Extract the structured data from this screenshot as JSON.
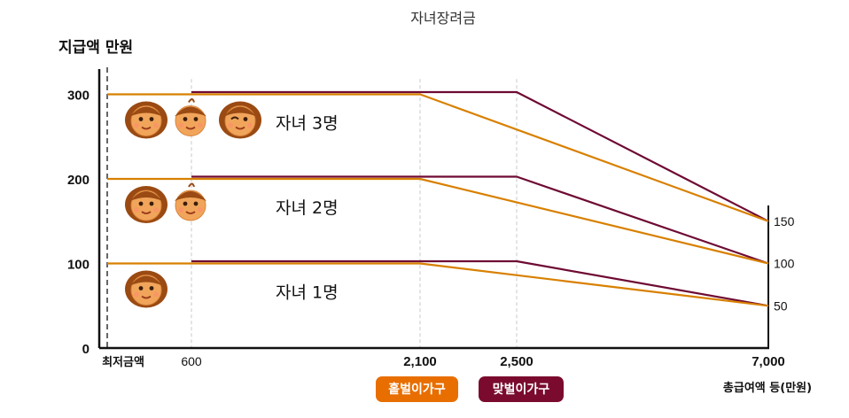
{
  "chart_data": {
    "type": "line",
    "title": "자녀장려금",
    "ylabel": "지급액 만원",
    "xlabel": "총급여액 등(만원)",
    "x_first_label": "최저금액",
    "x_ticks": [
      600,
      2100,
      2500,
      7000
    ],
    "x_tick_labels": [
      "600",
      "2,100",
      "2,500",
      "7,000"
    ],
    "y_ticks": [
      0,
      100,
      200,
      300
    ],
    "y_tick_labels": [
      "0",
      "100",
      "200",
      "300"
    ],
    "right_ticks": [
      50,
      100,
      150
    ],
    "right_tick_labels": [
      "50",
      "100",
      "150"
    ],
    "ylim": [
      0,
      320
    ],
    "colors": {
      "single": "#d88000",
      "dual": "#6e0a33",
      "axis": "#111111",
      "grid": "#c8c8c8"
    },
    "legend": [
      {
        "key": "single",
        "label": "홑벌이가구",
        "color": "#e86e00"
      },
      {
        "key": "dual",
        "label": "맞벌이가구",
        "color": "#7a0b2e"
      }
    ],
    "groups": [
      {
        "label": "자녀 1명",
        "children": 1,
        "icons": [
          "girl-face-icon"
        ],
        "series": [
          {
            "key": "single",
            "x": [
              0,
              2100,
              7000
            ],
            "y": [
              100,
              100,
              50
            ]
          },
          {
            "key": "dual",
            "x": [
              600,
              2500,
              7000
            ],
            "y": [
              100,
              100,
              50
            ]
          }
        ]
      },
      {
        "label": "자녀 2명",
        "children": 2,
        "icons": [
          "girl-face-icon",
          "boy-face-icon"
        ],
        "series": [
          {
            "key": "single",
            "x": [
              0,
              2100,
              7000
            ],
            "y": [
              200,
              200,
              100
            ]
          },
          {
            "key": "dual",
            "x": [
              600,
              2500,
              7000
            ],
            "y": [
              200,
              200,
              100
            ]
          }
        ]
      },
      {
        "label": "자녀 3명",
        "children": 3,
        "icons": [
          "girl-face-icon",
          "boy-face-icon",
          "winking-girl-face-icon"
        ],
        "series": [
          {
            "key": "single",
            "x": [
              0,
              2100,
              7000
            ],
            "y": [
              300,
              300,
              150
            ]
          },
          {
            "key": "dual",
            "x": [
              600,
              2500,
              7000
            ],
            "y": [
              300,
              300,
              150
            ]
          }
        ]
      }
    ]
  }
}
